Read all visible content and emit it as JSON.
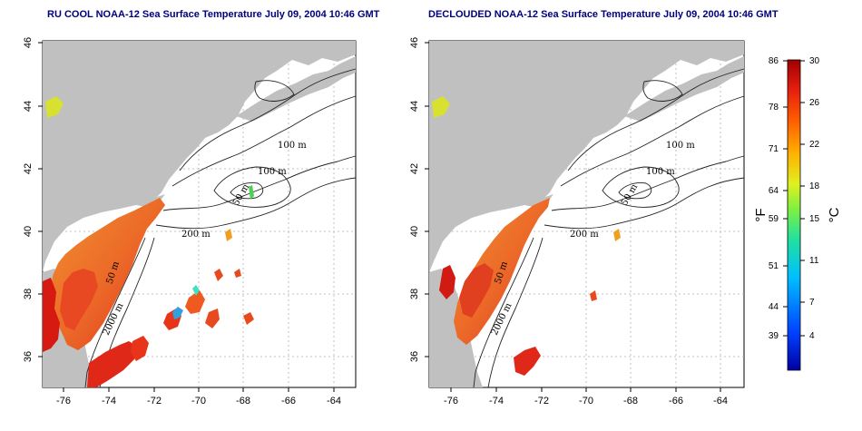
{
  "titles": {
    "left": "RU COOL NOAA-12 Sea Surface Temperature July 09, 2004 10:46 GMT",
    "right": "DECLOUDED NOAA-12 Sea Surface Temperature July 09, 2004 10:46 GMT"
  },
  "axes": {
    "x_ticks": [
      "-76",
      "-74",
      "-72",
      "-70",
      "-68",
      "-66",
      "-64"
    ],
    "y_ticks": [
      "46",
      "44",
      "42",
      "40",
      "38",
      "36"
    ]
  },
  "contour_labels": [
    "100 m",
    "100 m",
    "50 m",
    "200 m",
    "50 m",
    "2000 m"
  ],
  "colorbar": {
    "fahrenheit_unit": "°F",
    "celsius_unit": "°C",
    "fahrenheit_ticks": [
      "86",
      "78",
      "71",
      "64",
      "59",
      "51",
      "44",
      "39"
    ],
    "celsius_ticks": [
      "30",
      "26",
      "22",
      "18",
      "15",
      "11",
      "7",
      "4"
    ]
  },
  "colors": {
    "land": "#c0c0c0",
    "ocean": "#ffffff",
    "title": "#000080",
    "sst_warm": "#e8401c",
    "sst_hot": "#d01010",
    "sst_mid": "#f08020",
    "sst_yellow": "#e8e020"
  }
}
